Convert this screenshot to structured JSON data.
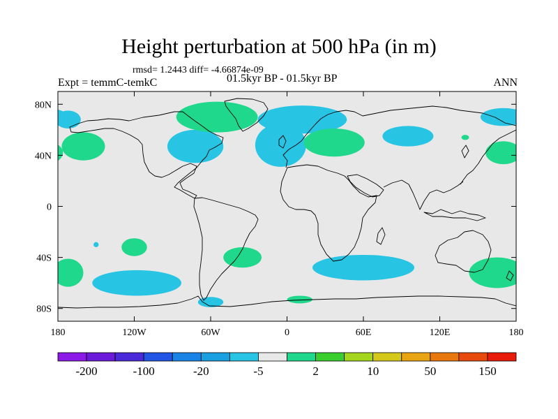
{
  "chart_data": {
    "type": "heatmap",
    "title": "Height perturbation at 500 hPa (in m)",
    "stats_line": "rmsd= 1.2443 diff= -4.66874e-09",
    "left_label": "Expt = temmC-temkC",
    "center_label": "01.5kyr BP - 01.5kyr BP",
    "right_label": "ANN",
    "xlim": [
      -180,
      180
    ],
    "ylim": [
      -90,
      90
    ],
    "x_ticks": [
      {
        "value": -180,
        "label": "180"
      },
      {
        "value": -120,
        "label": "120W"
      },
      {
        "value": -60,
        "label": "60W"
      },
      {
        "value": 0,
        "label": "0"
      },
      {
        "value": 60,
        "label": "60E"
      },
      {
        "value": 120,
        "label": "120E"
      },
      {
        "value": 180,
        "label": "180"
      }
    ],
    "y_ticks": [
      {
        "value": 80,
        "label": "80N"
      },
      {
        "value": 40,
        "label": "40N"
      },
      {
        "value": 0,
        "label": "0"
      },
      {
        "value": -40,
        "label": "40S"
      },
      {
        "value": -80,
        "label": "80S"
      }
    ],
    "colorbar": {
      "colors": [
        "#8c1ae6",
        "#6a1ad8",
        "#4a2ad8",
        "#2255e6",
        "#1a84e6",
        "#1aa0e0",
        "#27c4e4",
        "#e8e8e8",
        "#1fd88c",
        "#3acd2e",
        "#a3d61c",
        "#d4c81a",
        "#e8a412",
        "#e8780e",
        "#e84a0e",
        "#e81a0a"
      ],
      "tick_labels": [
        "-200",
        "-100",
        "-20",
        "-5",
        "2",
        "10",
        "50",
        "150"
      ]
    },
    "anomalies": [
      {
        "lon": -160,
        "lat": 47,
        "rlon": 17,
        "rlat": 11,
        "sign": "positive"
      },
      {
        "lon": -72,
        "lat": 47,
        "rlon": 22,
        "rlat": 13,
        "sign": "negative"
      },
      {
        "lon": -55,
        "lat": 70,
        "rlon": 32,
        "rlat": 12,
        "sign": "positive"
      },
      {
        "lon": -172,
        "lat": 68,
        "rlon": 10,
        "rlat": 7,
        "sign": "negative"
      },
      {
        "lon": 12,
        "lat": 68,
        "rlon": 35,
        "rlat": 11,
        "sign": "negative"
      },
      {
        "lon": -5,
        "lat": 48,
        "rlon": 20,
        "rlat": 17,
        "sign": "negative"
      },
      {
        "lon": 37,
        "lat": 50,
        "rlon": 24,
        "rlat": 11,
        "sign": "positive"
      },
      {
        "lon": 95,
        "lat": 55,
        "rlon": 20,
        "rlat": 8,
        "sign": "negative"
      },
      {
        "lon": 170,
        "lat": 70,
        "rlon": 18,
        "rlat": 7,
        "sign": "negative"
      },
      {
        "lon": 170,
        "lat": 42,
        "rlon": 14,
        "rlat": 9,
        "sign": "positive"
      },
      {
        "lon": 140,
        "lat": 54,
        "rlon": 3,
        "rlat": 2,
        "sign": "positive"
      },
      {
        "lon": -120,
        "lat": -32,
        "rlon": 10,
        "rlat": 7,
        "sign": "positive"
      },
      {
        "lon": -35,
        "lat": -40,
        "rlon": 15,
        "rlat": 8,
        "sign": "positive"
      },
      {
        "lon": -172,
        "lat": -52,
        "rlon": 12,
        "rlat": 11,
        "sign": "positive"
      },
      {
        "lon": 165,
        "lat": -52,
        "rlon": 22,
        "rlat": 12,
        "sign": "positive"
      },
      {
        "lon": 60,
        "lat": -48,
        "rlon": 40,
        "rlat": 10,
        "sign": "negative"
      },
      {
        "lon": -118,
        "lat": -60,
        "rlon": 35,
        "rlat": 10,
        "sign": "negative"
      },
      {
        "lon": 10,
        "lat": -73,
        "rlon": 10,
        "rlat": 3,
        "sign": "positive"
      },
      {
        "lon": -60,
        "lat": -75,
        "rlon": 10,
        "rlat": 4,
        "sign": "negative"
      },
      {
        "lon": -150,
        "lat": -30,
        "rlon": 2,
        "rlat": 2,
        "sign": "negative"
      }
    ]
  }
}
